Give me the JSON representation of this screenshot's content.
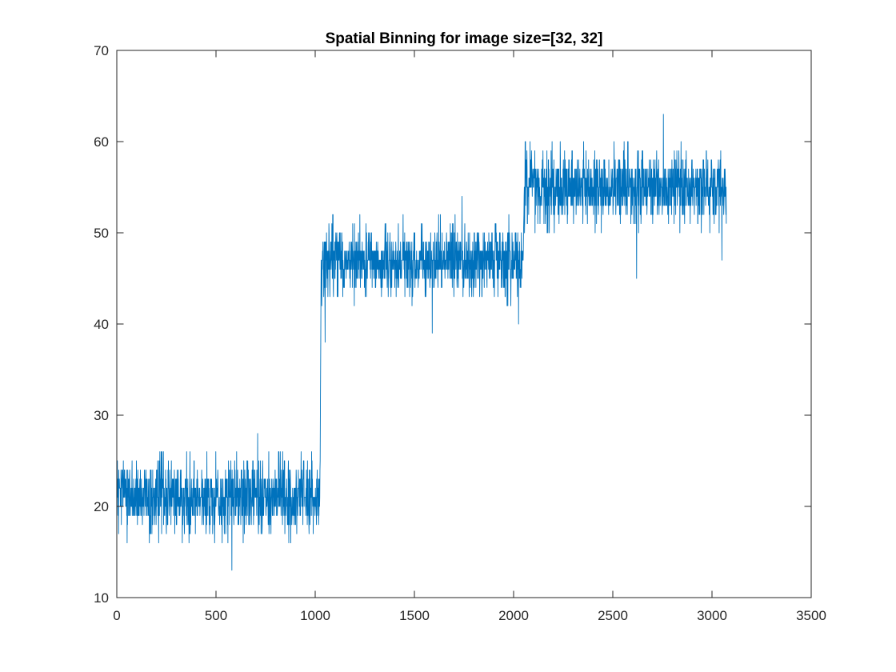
{
  "chart_data": {
    "type": "line",
    "title": "Spatial Binning for image size=[32, 32]",
    "xlabel": "",
    "ylabel": "",
    "xlim": [
      0,
      3500
    ],
    "ylim": [
      10,
      70
    ],
    "xticks": [
      "0",
      "500",
      "1000",
      "1500",
      "2000",
      "2500",
      "3000",
      "3500"
    ],
    "yticks": [
      "10",
      "20",
      "30",
      "40",
      "50",
      "60",
      "70"
    ],
    "grid": false,
    "legend": "none",
    "line_color": "#0072BD",
    "series": [
      {
        "segments": [
          {
            "x_start": 1,
            "x_end": 1024,
            "level": 21,
            "amplitude": 3
          },
          {
            "x_start": 1025,
            "x_end": 2048,
            "level": 47,
            "amplitude": 3
          },
          {
            "x_start": 2049,
            "x_end": 3072,
            "level": 55,
            "amplitude": 3
          }
        ],
        "extremes": [
          {
            "x": 580,
            "y": 13
          },
          {
            "x": 710,
            "y": 28
          },
          {
            "x": 1050,
            "y": 38
          },
          {
            "x": 1590,
            "y": 39
          },
          {
            "x": 1740,
            "y": 54
          },
          {
            "x": 2025,
            "y": 40
          },
          {
            "x": 2620,
            "y": 45
          },
          {
            "x": 2755,
            "y": 63
          },
          {
            "x": 3050,
            "y": 47
          }
        ]
      }
    ]
  }
}
